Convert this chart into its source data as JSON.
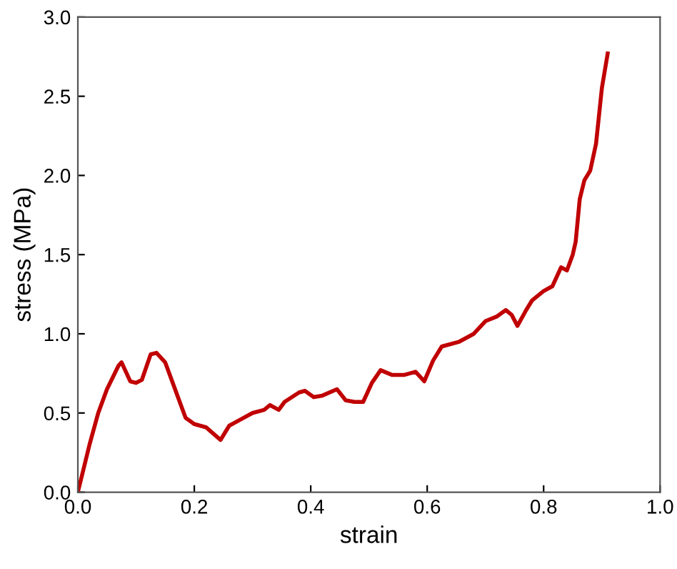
{
  "chart_data": {
    "type": "line",
    "xlabel": "strain",
    "ylabel": "stress (MPa)",
    "xlim": [
      0,
      1
    ],
    "ylim": [
      0,
      3
    ],
    "xticks": [
      {
        "value": 0,
        "label": "0.0"
      },
      0.2,
      0.4,
      0.6,
      0.8,
      {
        "value": 1,
        "label": "1.0"
      }
    ],
    "yticks": [
      {
        "value": 0,
        "label": "0.0"
      },
      0.5,
      {
        "value": 1,
        "label": "1.0"
      },
      1.5,
      {
        "value": 2,
        "label": "2.0"
      },
      2.5,
      {
        "value": 3,
        "label": "3.0"
      }
    ],
    "grid": false,
    "legend": false,
    "series": [
      {
        "color": "#c00000",
        "x": [
          0,
          0.01,
          0.02,
          0.035,
          0.05,
          0.07,
          0.075,
          0.09,
          0.1,
          0.11,
          0.125,
          0.135,
          0.15,
          0.17,
          0.185,
          0.2,
          0.22,
          0.245,
          0.26,
          0.28,
          0.3,
          0.32,
          0.33,
          0.345,
          0.355,
          0.38,
          0.39,
          0.405,
          0.42,
          0.445,
          0.46,
          0.475,
          0.49,
          0.505,
          0.52,
          0.54,
          0.56,
          0.58,
          0.595,
          0.61,
          0.625,
          0.635,
          0.655,
          0.68,
          0.7,
          0.72,
          0.735,
          0.745,
          0.755,
          0.77,
          0.78,
          0.8,
          0.815,
          0.83,
          0.84,
          0.85,
          0.855,
          0.862,
          0.87,
          0.88,
          0.89,
          0.9,
          0.91
        ],
        "values": [
          0,
          0.15,
          0.3,
          0.5,
          0.65,
          0.8,
          0.82,
          0.7,
          0.69,
          0.71,
          0.87,
          0.88,
          0.82,
          0.62,
          0.47,
          0.43,
          0.41,
          0.33,
          0.42,
          0.46,
          0.5,
          0.52,
          0.55,
          0.52,
          0.57,
          0.63,
          0.64,
          0.6,
          0.61,
          0.65,
          0.58,
          0.57,
          0.57,
          0.69,
          0.77,
          0.74,
          0.74,
          0.76,
          0.7,
          0.83,
          0.92,
          0.93,
          0.95,
          1.0,
          1.08,
          1.11,
          1.15,
          1.12,
          1.05,
          1.15,
          1.21,
          1.27,
          1.3,
          1.42,
          1.4,
          1.5,
          1.58,
          1.85,
          1.97,
          2.03,
          2.2,
          2.55,
          2.77
        ]
      }
    ]
  }
}
